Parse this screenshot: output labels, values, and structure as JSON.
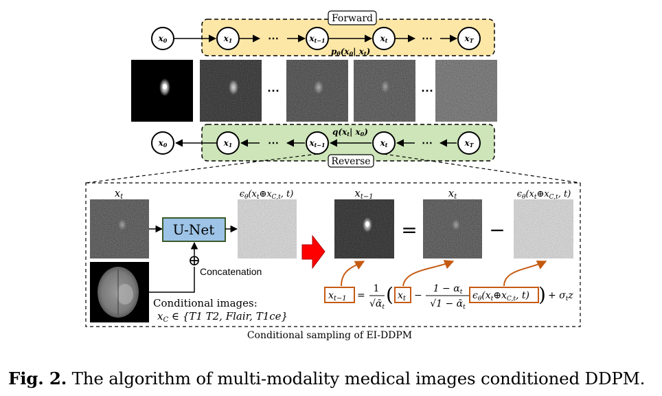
{
  "forward": {
    "label": "Forward",
    "nodes": [
      "x0",
      "x1",
      "xt-1",
      "xt",
      "xT"
    ],
    "transition": "pθ(x0| xt)"
  },
  "reverse": {
    "label": "Reverse",
    "nodes": [
      "x0",
      "x1",
      "xt-1",
      "xt",
      "xT"
    ],
    "transition": "q(xt| x0)"
  },
  "ellipsis": "⋯",
  "cond_sampling": {
    "title": "Conditional sampling of EI-DDPM",
    "unet_label": "U-Net",
    "concat_label": "Concatenation",
    "concat_symbol": "⊕",
    "input_label": "xt",
    "noise_label": "εθ(xt⊕xC,t, t)",
    "cond_images_label": "Conditional images:",
    "cond_set": "xC ∈ {T1 T2, Flair, T1ce}",
    "eq_labels": [
      "xt-1",
      "xt",
      "εθ(xt⊕xC,t, t)"
    ],
    "eq_equals": "=",
    "eq_minus": "−"
  },
  "formula": {
    "lhs": "xt-1",
    "frac1_num": "1",
    "frac1_den": "√ᾱt",
    "x_t": "xt",
    "frac2_num": "1 − αt",
    "frac2_den": "√1 − ᾱt",
    "eps": "εθ(xt⊕xC,t, t)",
    "tail": "+ σt z"
  },
  "caption": {
    "label": "Fig. 2.",
    "text": " The algorithm of multi-modality medical images conditioned DDPM."
  },
  "colors": {
    "forward_fill": "#fde7a7",
    "reverse_fill": "#cde5b8",
    "unet_fill": "#9dc3e6",
    "unet_border": "#3a5a2a",
    "formula_box": "#c55a11",
    "red_arrow": "#ff0000"
  }
}
